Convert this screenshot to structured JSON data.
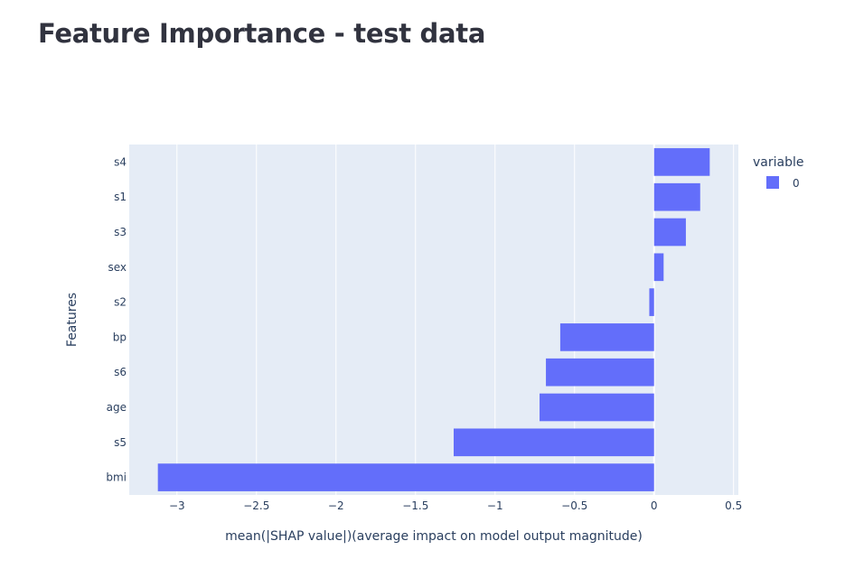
{
  "page": {
    "title": "Feature Importance - test data"
  },
  "chart_data": {
    "type": "bar",
    "orientation": "horizontal",
    "categories": [
      "bmi",
      "s5",
      "age",
      "s6",
      "bp",
      "s2",
      "sex",
      "s3",
      "s1",
      "s4"
    ],
    "series": [
      {
        "name": "0",
        "color": "#636efa",
        "values": [
          -3.12,
          -1.26,
          -0.72,
          -0.68,
          -0.59,
          -0.03,
          0.06,
          0.2,
          0.29,
          0.35
        ]
      }
    ],
    "xlabel": "mean(|SHAP value|)(average impact on model output magnitude)",
    "ylabel": "Features",
    "xlim": [
      -3.3,
      0.53
    ],
    "xticks": [
      -3,
      -2.5,
      -2,
      -1.5,
      -1,
      -0.5,
      0,
      0.5
    ],
    "xtick_labels": [
      "−3",
      "−2.5",
      "−2",
      "−1.5",
      "−1",
      "−0.5",
      "0",
      "0.5"
    ],
    "grid": true,
    "plot_background": "#e5ecf6",
    "legend": {
      "title": "variable",
      "placement": "top-right",
      "entries": [
        "0"
      ]
    }
  }
}
